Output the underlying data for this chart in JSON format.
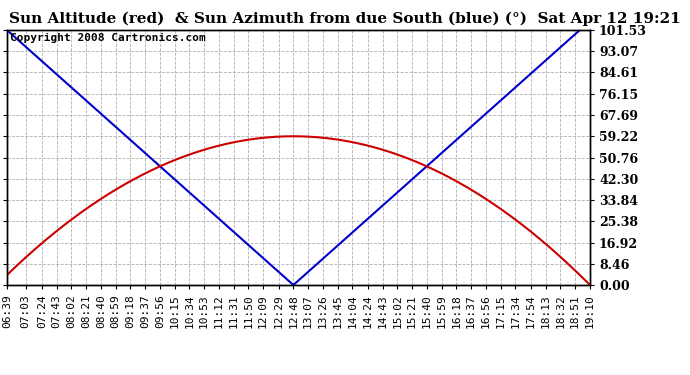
{
  "title": "Sun Altitude (red)  & Sun Azimuth from due South (blue) (°)  Sat Apr 12 19:21",
  "copyright": "Copyright 2008 Cartronics.com",
  "yticks": [
    0.0,
    8.46,
    16.92,
    25.38,
    33.84,
    42.3,
    50.76,
    59.22,
    67.69,
    76.15,
    84.61,
    93.07,
    101.53
  ],
  "ymax": 101.53,
  "ymin": 0.0,
  "solar_noon": "12:48",
  "altitude_max": 59.22,
  "azimuth_max": 101.53,
  "line_color_red": "#cc0000",
  "line_color_blue": "#0000cc",
  "bg_color": "#ffffff",
  "grid_color": "#b0b0b0",
  "title_fontsize": 11,
  "copyright_fontsize": 8,
  "tick_fontsize": 8,
  "ytick_fontsize": 9,
  "xtick_labels": [
    "06:39",
    "07:03",
    "07:24",
    "07:43",
    "08:02",
    "08:21",
    "08:40",
    "08:59",
    "09:18",
    "09:37",
    "09:56",
    "10:15",
    "10:34",
    "10:53",
    "11:12",
    "11:31",
    "11:50",
    "12:09",
    "12:29",
    "12:48",
    "13:07",
    "13:26",
    "13:45",
    "14:04",
    "14:24",
    "14:43",
    "15:02",
    "15:21",
    "15:40",
    "15:59",
    "16:18",
    "16:37",
    "16:56",
    "17:15",
    "17:34",
    "17:54",
    "18:13",
    "18:32",
    "18:51",
    "19:10"
  ]
}
